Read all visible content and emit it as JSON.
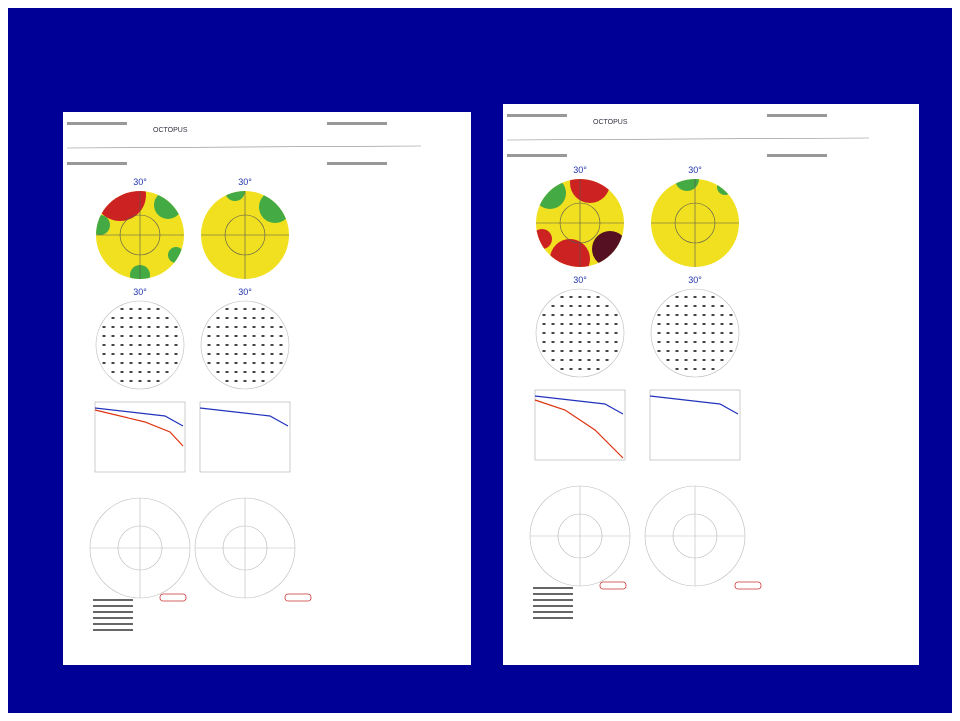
{
  "pages": [
    {
      "header": "OCTOPUS",
      "columns": [
        {
          "labels": [
            "30°",
            "30°"
          ]
        },
        {
          "labels": [
            "30°",
            "30°"
          ]
        }
      ]
    },
    {
      "header": "OCTOPUS",
      "columns": [
        {
          "labels": [
            "30°",
            "30°"
          ]
        },
        {
          "labels": [
            "30°",
            "30°"
          ]
        }
      ]
    }
  ]
}
